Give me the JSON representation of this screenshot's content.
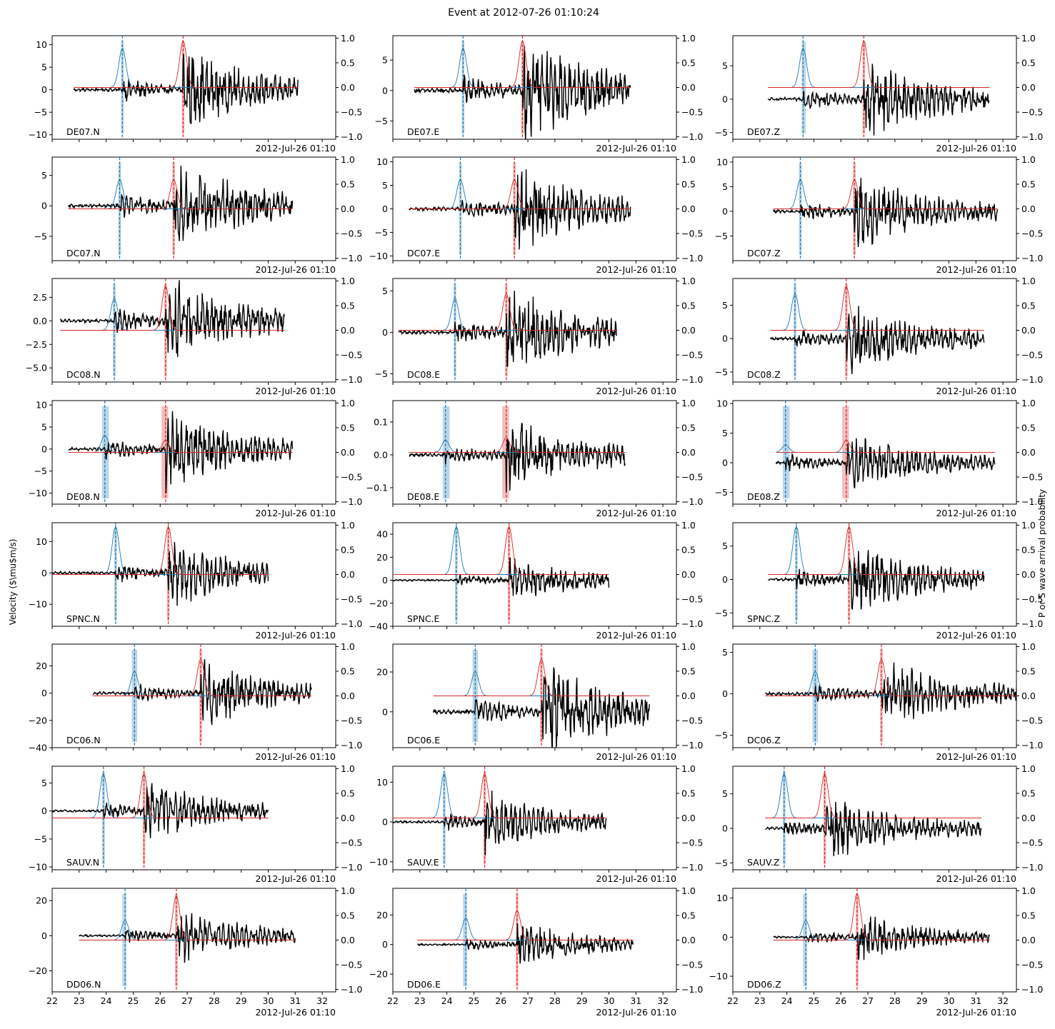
{
  "figure": {
    "title": "Event at 2012-07-26 01:10:24",
    "ylabel_left": "Velocity ($\\mu$m/s)",
    "ylabel_right": "P or S wave arrival probability",
    "date_label": "2012-Jul-26 01:10"
  },
  "colors": {
    "trace": "#000000",
    "p_wave": "#1f77b4",
    "s_wave": "#d62728"
  },
  "chart_data": {
    "type": "line",
    "layout": "grid 8 rows x 3 columns",
    "x_axis": {
      "unit": "seconds after 2012-Jul-26 01:10",
      "range": [
        22,
        32.5
      ],
      "ticks": [
        22,
        23,
        24,
        25,
        26,
        27,
        28,
        29,
        30,
        31,
        32
      ]
    },
    "right_axis": {
      "range": [
        -1.05,
        1.05
      ],
      "ticks": [
        1.0,
        0.5,
        0.0,
        -0.5,
        -1.0
      ],
      "tick_labels": [
        "1.0",
        "0.5",
        "0.0",
        "−0.5",
        "−1.0"
      ]
    },
    "panels": [
      {
        "label": "DE07.N",
        "ylim": [
          -11,
          12
        ],
        "yticks": [
          10,
          5,
          0,
          -5,
          -10
        ],
        "ytick_labels": [
          "10",
          "5",
          "0",
          "−5",
          "−10"
        ],
        "x_range": [
          22.8,
          31.1
        ],
        "p_pick": 24.6,
        "s_pick": 26.85,
        "p_prob": 0.8,
        "s_prob": 0.95,
        "p_band": [
          24.55,
          24.65
        ],
        "s_band": [
          26.8,
          26.9
        ],
        "amp": 6,
        "prob_base": 0.0
      },
      {
        "label": "DE07.E",
        "ylim": [
          -8,
          9
        ],
        "yticks": [
          5,
          0,
          -5
        ],
        "ytick_labels": [
          "5",
          "0",
          "−5"
        ],
        "x_range": [
          22.8,
          30.8
        ],
        "p_pick": 24.6,
        "s_pick": 26.8,
        "p_prob": 0.8,
        "s_prob": 0.95,
        "p_band": [
          24.55,
          24.65
        ],
        "s_band": [
          26.75,
          26.85
        ],
        "amp": 6,
        "prob_base": 0.0
      },
      {
        "label": "DE07.Z",
        "ylim": [
          -6,
          9.5
        ],
        "yticks": [
          5,
          0,
          -5
        ],
        "ytick_labels": [
          "5",
          "0",
          "−5"
        ],
        "x_range": [
          23.3,
          31.5
        ],
        "p_pick": 24.6,
        "s_pick": 26.85,
        "p_prob": 0.8,
        "s_prob": 0.95,
        "p_band": [
          24.55,
          24.7
        ],
        "s_band": [
          26.8,
          26.9
        ],
        "amp": 4,
        "prob_base": 0.0
      },
      {
        "label": "DC07.N",
        "ylim": [
          -9,
          8
        ],
        "yticks": [
          5,
          0,
          -5
        ],
        "ytick_labels": [
          "5",
          "0",
          "−5"
        ],
        "x_range": [
          22.6,
          30.9
        ],
        "p_pick": 24.5,
        "s_pick": 26.5,
        "p_prob": 0.6,
        "s_prob": 0.6,
        "p_band": [
          24.45,
          24.55
        ],
        "s_band": [
          26.45,
          26.55
        ],
        "amp": 5,
        "prob_base": 0.0
      },
      {
        "label": "DC07.E",
        "ylim": [
          -11,
          11
        ],
        "yticks": [
          10,
          5,
          0,
          -5,
          -10
        ],
        "ytick_labels": [
          "10",
          "5",
          "0",
          "−5",
          "−10"
        ],
        "x_range": [
          22.6,
          30.8
        ],
        "p_pick": 24.5,
        "s_pick": 26.5,
        "p_prob": 0.6,
        "s_prob": 0.6,
        "p_band": [
          24.45,
          24.55
        ],
        "s_band": [
          26.45,
          26.55
        ],
        "amp": 6,
        "prob_base": 0.0
      },
      {
        "label": "DC07.Z",
        "ylim": [
          -10,
          11
        ],
        "yticks": [
          10,
          5,
          0,
          -5
        ],
        "ytick_labels": [
          "10",
          "5",
          "0",
          "−5"
        ],
        "x_range": [
          23.5,
          31.8
        ],
        "p_pick": 24.5,
        "s_pick": 26.5,
        "p_prob": 0.6,
        "s_prob": 0.6,
        "p_band": [
          24.45,
          24.55
        ],
        "s_band": [
          26.45,
          26.55
        ],
        "amp": 5,
        "prob_base": 0.0
      },
      {
        "label": "DC08.N",
        "ylim": [
          -6.5,
          4.5
        ],
        "yticks": [
          2.5,
          0.0,
          -2.5,
          -5.0
        ],
        "ytick_labels": [
          "2.5",
          "0.0",
          "−2.5",
          "−5.0"
        ],
        "x_range": [
          22.3,
          30.6
        ],
        "p_pick": 24.3,
        "s_pick": 26.2,
        "p_prob": 0.65,
        "s_prob": 0.9,
        "p_band": [
          24.25,
          24.35
        ],
        "s_band": [
          26.15,
          26.25
        ],
        "amp": 3,
        "prob_base": 0.0
      },
      {
        "label": "DC08.E",
        "ylim": [
          -6,
          6.5
        ],
        "yticks": [
          5,
          0,
          -5
        ],
        "ytick_labels": [
          "5",
          "0",
          "−5"
        ],
        "x_range": [
          22.2,
          30.3
        ],
        "p_pick": 24.3,
        "s_pick": 26.2,
        "p_prob": 0.65,
        "s_prob": 0.75,
        "p_band": [
          24.25,
          24.35
        ],
        "s_band": [
          26.15,
          26.25
        ],
        "amp": 3.5,
        "prob_base": 0.0
      },
      {
        "label": "DC08.Z",
        "ylim": [
          -6.5,
          9
        ],
        "yticks": [
          5,
          0,
          -5
        ],
        "ytick_labels": [
          "5",
          "0",
          "−5"
        ],
        "x_range": [
          23.4,
          31.3
        ],
        "p_pick": 24.3,
        "s_pick": 26.2,
        "p_prob": 0.75,
        "s_prob": 0.9,
        "p_band": [
          24.25,
          24.35
        ],
        "s_band": [
          26.15,
          26.25
        ],
        "amp": 3.5,
        "prob_base": 0.0
      },
      {
        "label": "DE08.N",
        "ylim": [
          -12.5,
          11
        ],
        "yticks": [
          10,
          5,
          0,
          -5,
          -10
        ],
        "ytick_labels": [
          "10",
          "5",
          "0",
          "−5",
          "−10"
        ],
        "x_range": [
          22.6,
          30.9
        ],
        "p_pick": 23.95,
        "s_pick": 26.2,
        "p_prob": 0.35,
        "s_prob": 0.25,
        "p_band": [
          23.85,
          24.1
        ],
        "s_band": [
          26.05,
          26.3
        ],
        "amp": 6,
        "prob_base": 0.0
      },
      {
        "label": "DE08.E",
        "ylim": [
          -0.15,
          0.165
        ],
        "yticks": [
          0.1,
          0.0,
          -0.1
        ],
        "ytick_labels": [
          "0.1",
          "0.0",
          "−0.1"
        ],
        "x_range": [
          22.6,
          30.6
        ],
        "p_pick": 23.95,
        "s_pick": 26.2,
        "p_prob": 0.25,
        "s_prob": 0.3,
        "p_band": [
          23.85,
          24.1
        ],
        "s_band": [
          26.05,
          26.3
        ],
        "amp": 0.075,
        "prob_base": 0.0
      },
      {
        "label": "DE08.Z",
        "ylim": [
          -7,
          10.5
        ],
        "yticks": [
          10,
          5,
          0,
          -5
        ],
        "ytick_labels": [
          "10",
          "5",
          "0",
          "−5"
        ],
        "x_range": [
          23.6,
          31.7
        ],
        "p_pick": 23.95,
        "s_pick": 26.2,
        "p_prob": 0.15,
        "s_prob": 0.25,
        "p_band": [
          23.85,
          24.1
        ],
        "s_band": [
          26.05,
          26.3
        ],
        "amp": 3.5,
        "prob_base": 0.0
      },
      {
        "label": "SPNC.N",
        "ylim": [
          -17,
          16
        ],
        "yticks": [
          10,
          0,
          -10
        ],
        "ytick_labels": [
          "10",
          "0",
          "−10"
        ],
        "x_range": [
          22.0,
          30.0
        ],
        "p_pick": 24.35,
        "s_pick": 26.3,
        "p_prob": 0.98,
        "s_prob": 0.98,
        "p_band": [
          24.3,
          24.4
        ],
        "s_band": [
          26.25,
          26.35
        ],
        "amp": 7,
        "prob_base": 0.0
      },
      {
        "label": "SPNC.E",
        "ylim": [
          -40,
          50
        ],
        "yticks": [
          40,
          20,
          0,
          -20,
          -40
        ],
        "ytick_labels": [
          "40",
          "20",
          "0",
          "−20",
          "−40"
        ],
        "x_range": [
          22.0,
          30.0
        ],
        "p_pick": 24.35,
        "s_pick": 26.3,
        "p_prob": 0.98,
        "s_prob": 0.98,
        "p_band": [
          24.3,
          24.4
        ],
        "s_band": [
          26.25,
          26.35
        ],
        "amp": 12,
        "prob_base": 0.0
      },
      {
        "label": "SPNC.Z",
        "ylim": [
          -7,
          8.5
        ],
        "yticks": [
          5,
          0,
          -5
        ],
        "ytick_labels": [
          "5",
          "0",
          "−5"
        ],
        "x_range": [
          23.3,
          31.3
        ],
        "p_pick": 24.35,
        "s_pick": 26.3,
        "p_prob": 0.98,
        "s_prob": 0.98,
        "p_band": [
          24.3,
          24.4
        ],
        "s_band": [
          26.25,
          26.35
        ],
        "amp": 3.5,
        "prob_base": 0.0
      },
      {
        "label": "DC06.N",
        "ylim": [
          -40,
          36
        ],
        "yticks": [
          20,
          0,
          -20,
          -40
        ],
        "ytick_labels": [
          "20",
          "0",
          "−20",
          "−40"
        ],
        "x_range": [
          23.5,
          31.6
        ],
        "p_pick": 25.05,
        "s_pick": 27.5,
        "p_prob": 0.5,
        "s_prob": 0.75,
        "p_band": [
          24.95,
          25.15
        ],
        "s_band": [
          27.45,
          27.55
        ],
        "amp": 16,
        "prob_base": 0.0
      },
      {
        "label": "DC06.E",
        "ylim": [
          -18,
          34
        ],
        "yticks": [
          20,
          0
        ],
        "ytick_labels": [
          "20",
          "0"
        ],
        "x_range": [
          23.5,
          31.5
        ],
        "p_pick": 25.05,
        "s_pick": 27.5,
        "p_prob": 0.5,
        "s_prob": 0.75,
        "p_band": [
          24.95,
          25.15
        ],
        "s_band": [
          27.45,
          27.55
        ],
        "amp": 16,
        "prob_base": 0.0
      },
      {
        "label": "DC06.Z",
        "ylim": [
          -6.5,
          6
        ],
        "yticks": [
          5,
          0,
          -5
        ],
        "ytick_labels": [
          "5",
          "0",
          "−5"
        ],
        "x_range": [
          23.2,
          32.5
        ],
        "p_pick": 25.05,
        "s_pick": 27.5,
        "p_prob": 0.5,
        "s_prob": 0.75,
        "p_band": [
          24.95,
          25.15
        ],
        "s_band": [
          27.45,
          27.55
        ],
        "amp": 3,
        "prob_base": 0.0
      },
      {
        "label": "SAUV.N",
        "ylim": [
          -10.5,
          8
        ],
        "yticks": [
          5,
          0,
          -5,
          -10
        ],
        "ytick_labels": [
          "5",
          "0",
          "−5",
          "−10"
        ],
        "x_range": [
          22.0,
          30.0
        ],
        "p_pick": 23.9,
        "s_pick": 25.4,
        "p_prob": 0.9,
        "s_prob": 0.9,
        "p_band": [
          23.85,
          23.95
        ],
        "s_band": [
          25.35,
          25.45
        ],
        "amp": 3.5,
        "prob_base": 0.0
      },
      {
        "label": "SAUV.E",
        "ylim": [
          -12,
          14
        ],
        "yticks": [
          10,
          0,
          -10
        ],
        "ytick_labels": [
          "10",
          "0",
          "−10"
        ],
        "x_range": [
          22.0,
          29.9
        ],
        "p_pick": 23.9,
        "s_pick": 25.4,
        "p_prob": 0.9,
        "s_prob": 0.9,
        "p_band": [
          23.85,
          23.95
        ],
        "s_band": [
          25.35,
          25.45
        ],
        "amp": 5,
        "prob_base": 0.0
      },
      {
        "label": "SAUV.Z",
        "ylim": [
          -6,
          9
        ],
        "yticks": [
          5,
          0,
          -5
        ],
        "ytick_labels": [
          "5",
          "0",
          "−5"
        ],
        "x_range": [
          23.2,
          31.2
        ],
        "p_pick": 23.9,
        "s_pick": 25.4,
        "p_prob": 0.9,
        "s_prob": 0.9,
        "p_band": [
          23.85,
          23.95
        ],
        "s_band": [
          25.35,
          25.45
        ],
        "amp": 3,
        "prob_base": 0.0
      },
      {
        "label": "DD06.N",
        "ylim": [
          -32,
          27
        ],
        "yticks": [
          20,
          0,
          -20
        ],
        "ytick_labels": [
          "20",
          "0",
          "−20"
        ],
        "x_range": [
          23.0,
          31.0
        ],
        "p_pick": 24.7,
        "s_pick": 26.6,
        "p_prob": 0.4,
        "s_prob": 0.9,
        "p_band": [
          24.6,
          24.75
        ],
        "s_band": [
          26.55,
          26.65
        ],
        "amp": 10,
        "prob_base": 0.0
      },
      {
        "label": "DD06.E",
        "ylim": [
          -32,
          38
        ],
        "yticks": [
          20,
          0,
          -20
        ],
        "ytick_labels": [
          "20",
          "0",
          "−20"
        ],
        "x_range": [
          22.9,
          30.9
        ],
        "p_pick": 24.7,
        "s_pick": 26.6,
        "p_prob": 0.45,
        "s_prob": 0.6,
        "p_band": [
          24.6,
          24.75
        ],
        "s_band": [
          26.55,
          26.65
        ],
        "amp": 10,
        "prob_base": 0.0
      },
      {
        "label": "DD06.Z",
        "ylim": [
          -14,
          12.5
        ],
        "yticks": [
          10,
          0,
          -10
        ],
        "ytick_labels": [
          "10",
          "0",
          "−10"
        ],
        "x_range": [
          23.5,
          31.5
        ],
        "p_pick": 24.7,
        "s_pick": 26.6,
        "p_prob": 0.4,
        "s_prob": 0.95,
        "p_band": [
          24.6,
          24.75
        ],
        "s_band": [
          26.55,
          26.65
        ],
        "amp": 4,
        "prob_base": 0.0
      }
    ]
  }
}
